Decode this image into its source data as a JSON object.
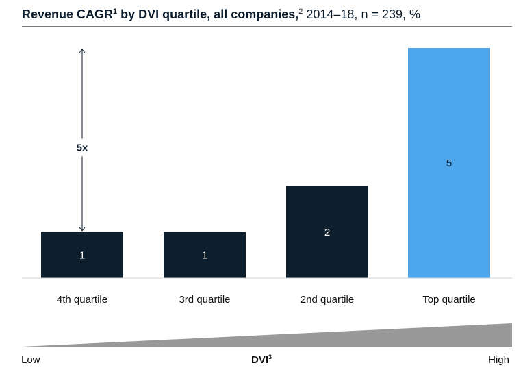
{
  "title": {
    "bold": "Revenue CAGR",
    "bold_sup": "1",
    "bold_rest": " by DVI quartile, all companies,",
    "sup2": "2",
    "rest": " 2014–18, n = 239, %"
  },
  "chart_data": {
    "type": "bar",
    "categories": [
      "4th quartile",
      "3rd quartile",
      "2nd quartile",
      "Top quartile"
    ],
    "values": [
      1,
      1,
      2,
      5
    ],
    "data_labels": [
      "1",
      "1",
      "2",
      "5"
    ],
    "colors": [
      "#0d1f2d",
      "#0d1f2d",
      "#0d1f2d",
      "#4ea6ec"
    ],
    "label_colors": [
      "#ffffff",
      "#ffffff",
      "#ffffff",
      "#0d1f2d"
    ],
    "ylim": [
      0,
      5
    ],
    "annotation": "5x",
    "grid": false
  },
  "dvi_scale": {
    "low": "Low",
    "label": "DVI",
    "label_sup": "3",
    "high": "High"
  }
}
